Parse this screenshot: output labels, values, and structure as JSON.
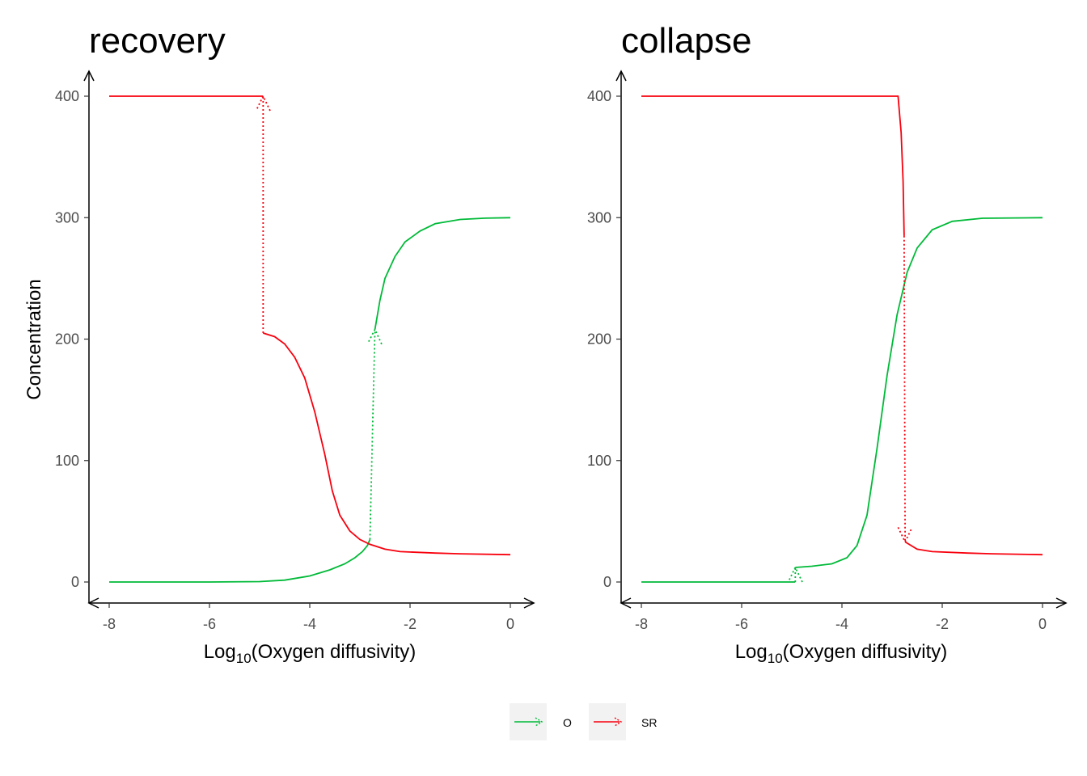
{
  "colors": {
    "O": "#00BA38",
    "SR": "#F8000D",
    "axis": "#000000",
    "tick_text": "#4D4D4D",
    "legend_key_bg": "#F2F2F2"
  },
  "legend": {
    "position": "bottom",
    "items": [
      {
        "name": "O",
        "color": "#00BA38"
      },
      {
        "name": "SR",
        "color": "#F8000D"
      }
    ]
  },
  "chart_data": [
    {
      "type": "line",
      "title": "recovery",
      "xlabel_prefix": "Log",
      "xlabel_sub": "10",
      "xlabel_suffix": "(Oxygen diffusivity)",
      "ylabel": "Concentration",
      "xlim": [
        -8,
        0
      ],
      "ylim": [
        0,
        400
      ],
      "x_ticks": [
        -8,
        -6,
        -4,
        -2,
        0
      ],
      "y_ticks": [
        0,
        100,
        200,
        300,
        400
      ],
      "x_tick_labels": [
        "-8",
        "-6",
        "-4",
        "-2",
        "0"
      ],
      "y_tick_labels": [
        "0",
        "100",
        "200",
        "300",
        "400"
      ],
      "grid": false,
      "series": [
        {
          "name": "O",
          "solid": [
            [
              -8,
              0
            ],
            [
              -6,
              0
            ],
            [
              -5,
              0.3
            ],
            [
              -4.5,
              1.5
            ],
            [
              -4,
              5
            ],
            [
              -3.6,
              10
            ],
            [
              -3.3,
              15
            ],
            [
              -3.1,
              20
            ],
            [
              -2.95,
              25
            ],
            [
              -2.85,
              30
            ],
            [
              -2.8,
              35
            ]
          ],
          "jump": {
            "from": [
              -2.8,
              35
            ],
            "to": [
              -2.7,
              208
            ]
          },
          "solid_after": [
            [
              -2.7,
              208
            ],
            [
              -2.6,
              232
            ],
            [
              -2.5,
              250
            ],
            [
              -2.3,
              268
            ],
            [
              -2.1,
              280
            ],
            [
              -1.8,
              289
            ],
            [
              -1.5,
              295
            ],
            [
              -1,
              298.5
            ],
            [
              -0.5,
              299.6
            ],
            [
              0,
              300
            ]
          ]
        },
        {
          "name": "SR",
          "solid": [
            [
              -8,
              400
            ],
            [
              -4.93,
              400
            ]
          ],
          "jump": {
            "from": [
              -4.93,
              205
            ],
            "to": [
              -4.93,
              400
            ]
          },
          "solid_after": [
            [
              -4.93,
              205
            ],
            [
              -4.7,
              202
            ],
            [
              -4.5,
              196
            ],
            [
              -4.3,
              185
            ],
            [
              -4.1,
              168
            ],
            [
              -3.9,
              140
            ],
            [
              -3.7,
              105
            ],
            [
              -3.55,
              75
            ],
            [
              -3.4,
              55
            ],
            [
              -3.2,
              42
            ],
            [
              -3,
              35
            ],
            [
              -2.8,
              31
            ],
            [
              -2.5,
              27
            ],
            [
              -2.2,
              25
            ],
            [
              -1.5,
              23.8
            ],
            [
              -1,
              23.2
            ],
            [
              0,
              22.5
            ]
          ]
        }
      ]
    },
    {
      "type": "line",
      "title": "collapse",
      "xlabel_prefix": "Log",
      "xlabel_sub": "10",
      "xlabel_suffix": "(Oxygen diffusivity)",
      "ylabel": "",
      "xlim": [
        -8,
        0
      ],
      "ylim": [
        0,
        400
      ],
      "x_ticks": [
        -8,
        -6,
        -4,
        -2,
        0
      ],
      "y_ticks": [
        0,
        100,
        200,
        300,
        400
      ],
      "x_tick_labels": [
        "-8",
        "-6",
        "-4",
        "-2",
        "0"
      ],
      "y_tick_labels": [
        "0",
        "100",
        "200",
        "300",
        "400"
      ],
      "grid": false,
      "series": [
        {
          "name": "O",
          "solid": [
            [
              -8,
              0
            ],
            [
              -4.93,
              0
            ]
          ],
          "jump": {
            "from": [
              -4.93,
              0
            ],
            "to": [
              -4.93,
              12
            ]
          },
          "solid_after": [
            [
              -4.93,
              12
            ],
            [
              -4.6,
              13
            ],
            [
              -4.2,
              15
            ],
            [
              -3.9,
              20
            ],
            [
              -3.7,
              30
            ],
            [
              -3.5,
              55
            ],
            [
              -3.3,
              110
            ],
            [
              -3.1,
              170
            ],
            [
              -2.9,
              220
            ],
            [
              -2.7,
              255
            ],
            [
              -2.5,
              275
            ],
            [
              -2.2,
              290
            ],
            [
              -1.8,
              297
            ],
            [
              -1.2,
              299.5
            ],
            [
              0,
              300
            ]
          ]
        },
        {
          "name": "SR",
          "solid": [
            [
              -8,
              400
            ],
            [
              -2.88,
              400
            ],
            [
              -2.82,
              370
            ],
            [
              -2.78,
              330
            ],
            [
              -2.76,
              285
            ]
          ],
          "jump": {
            "from": [
              -2.76,
              285
            ],
            "to": [
              -2.74,
              33
            ]
          },
          "solid_after": [
            [
              -2.74,
              33
            ],
            [
              -2.5,
              27
            ],
            [
              -2.2,
              25
            ],
            [
              -1.5,
              23.8
            ],
            [
              -1,
              23.2
            ],
            [
              0,
              22.5
            ]
          ]
        }
      ]
    }
  ]
}
